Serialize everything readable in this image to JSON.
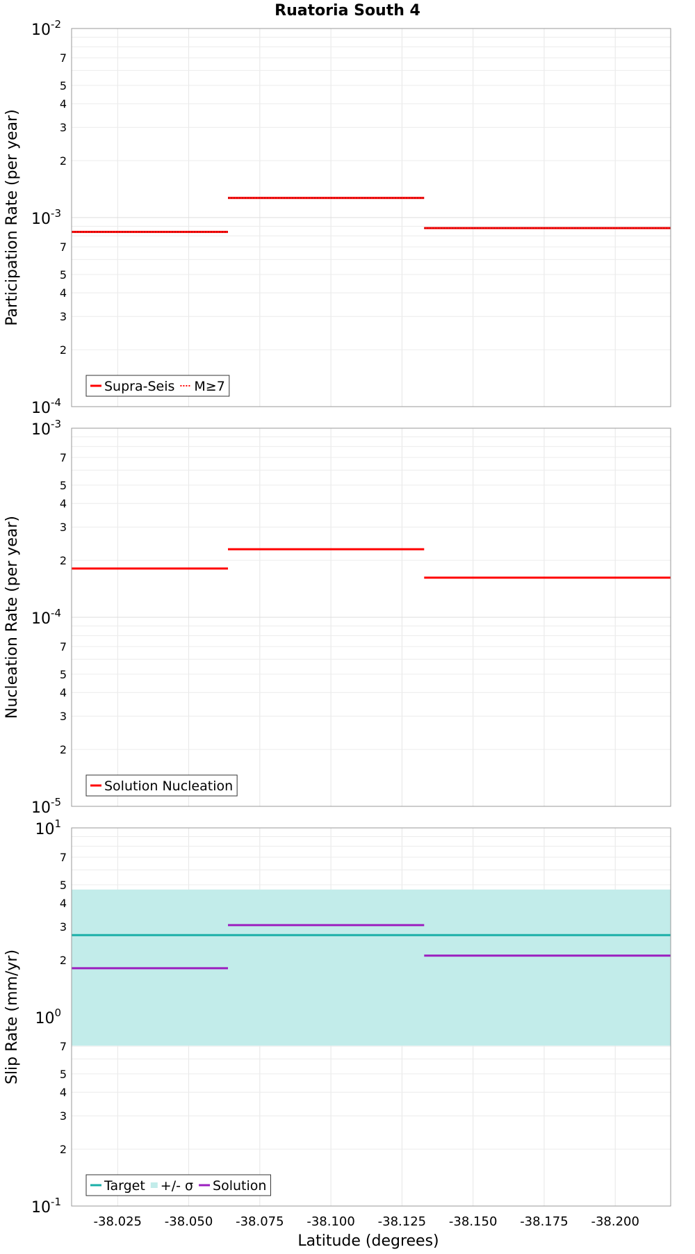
{
  "chart_data": [
    {
      "type": "line",
      "title": "Ruatoria South 4",
      "xlabel": "Latitude (degrees)",
      "ylabel": "Participation Rate (per year)",
      "yscale": "log",
      "xlim": [
        -38.0088,
        -38.2195
      ],
      "ylim": [
        0.0001,
        0.01
      ],
      "series": [
        {
          "name": "Supra-Seis",
          "style": "solid",
          "color": "#ff0000",
          "segments": [
            {
              "x": [
                -38.0088,
                -38.0638
              ],
              "y": 0.00084
            },
            {
              "x": [
                -38.0638,
                -38.1328
              ],
              "y": 0.00127
            },
            {
              "x": [
                -38.1328,
                -38.2195
              ],
              "y": 0.00088
            }
          ]
        },
        {
          "name": "M≥7",
          "style": "dotted",
          "color": "#ff0000",
          "segments": [
            {
              "x": [
                -38.0088,
                -38.0638
              ],
              "y": 0.00084
            },
            {
              "x": [
                -38.0638,
                -38.1328
              ],
              "y": 0.00127
            },
            {
              "x": [
                -38.1328,
                -38.2195
              ],
              "y": 0.00088
            }
          ]
        }
      ]
    },
    {
      "type": "line",
      "xlabel": "",
      "ylabel": "Nucleation Rate (per year)",
      "yscale": "log",
      "xlim": [
        -38.0088,
        -38.2195
      ],
      "ylim": [
        1e-05,
        0.001
      ],
      "series": [
        {
          "name": "Solution Nucleation",
          "style": "solid",
          "color": "#ff0000",
          "segments": [
            {
              "x": [
                -38.0088,
                -38.0638
              ],
              "y": 0.000181
            },
            {
              "x": [
                -38.0638,
                -38.1328
              ],
              "y": 0.000229
            },
            {
              "x": [
                -38.1328,
                -38.2195
              ],
              "y": 0.000162
            }
          ]
        }
      ]
    },
    {
      "type": "line",
      "xlabel": "Latitude (degrees)",
      "ylabel": "Slip Rate (mm/yr)",
      "yscale": "log",
      "xlim": [
        -38.0088,
        -38.2195
      ],
      "ylim": [
        0.1,
        10
      ],
      "series": [
        {
          "name": "Target",
          "style": "solid",
          "color": "#1aafa8",
          "segments": [
            {
              "x": [
                -38.0088,
                -38.2195
              ],
              "y": 2.71
            }
          ]
        },
        {
          "name": "+/- σ",
          "style": "band",
          "color": "#c2ecea",
          "band": {
            "x": [
              -38.0088,
              -38.2195
            ],
            "low": 0.705,
            "high": 4.72
          }
        },
        {
          "name": "Solution",
          "style": "solid",
          "color": "#9b1fbf",
          "segments": [
            {
              "x": [
                -38.0088,
                -38.0638
              ],
              "y": 1.81
            },
            {
              "x": [
                -38.0638,
                -38.1328
              ],
              "y": 3.06
            },
            {
              "x": [
                -38.1328,
                -38.2195
              ],
              "y": 2.11
            }
          ]
        }
      ]
    }
  ],
  "x_ticks": [
    "-38.025",
    "-38.050",
    "-38.075",
    "-38.100",
    "-38.125",
    "-38.150",
    "-38.175",
    "-38.200"
  ],
  "x_tick_values": [
    -38.025,
    -38.05,
    -38.075,
    -38.1,
    -38.125,
    -38.15,
    -38.175,
    -38.2
  ],
  "minor_tick_labels": [
    "2",
    "3",
    "4",
    "5",
    "7"
  ],
  "panels_y_decades": [
    [
      -4,
      -3,
      -2
    ],
    [
      -5,
      -4,
      -3
    ],
    [
      -1,
      0,
      1
    ]
  ]
}
